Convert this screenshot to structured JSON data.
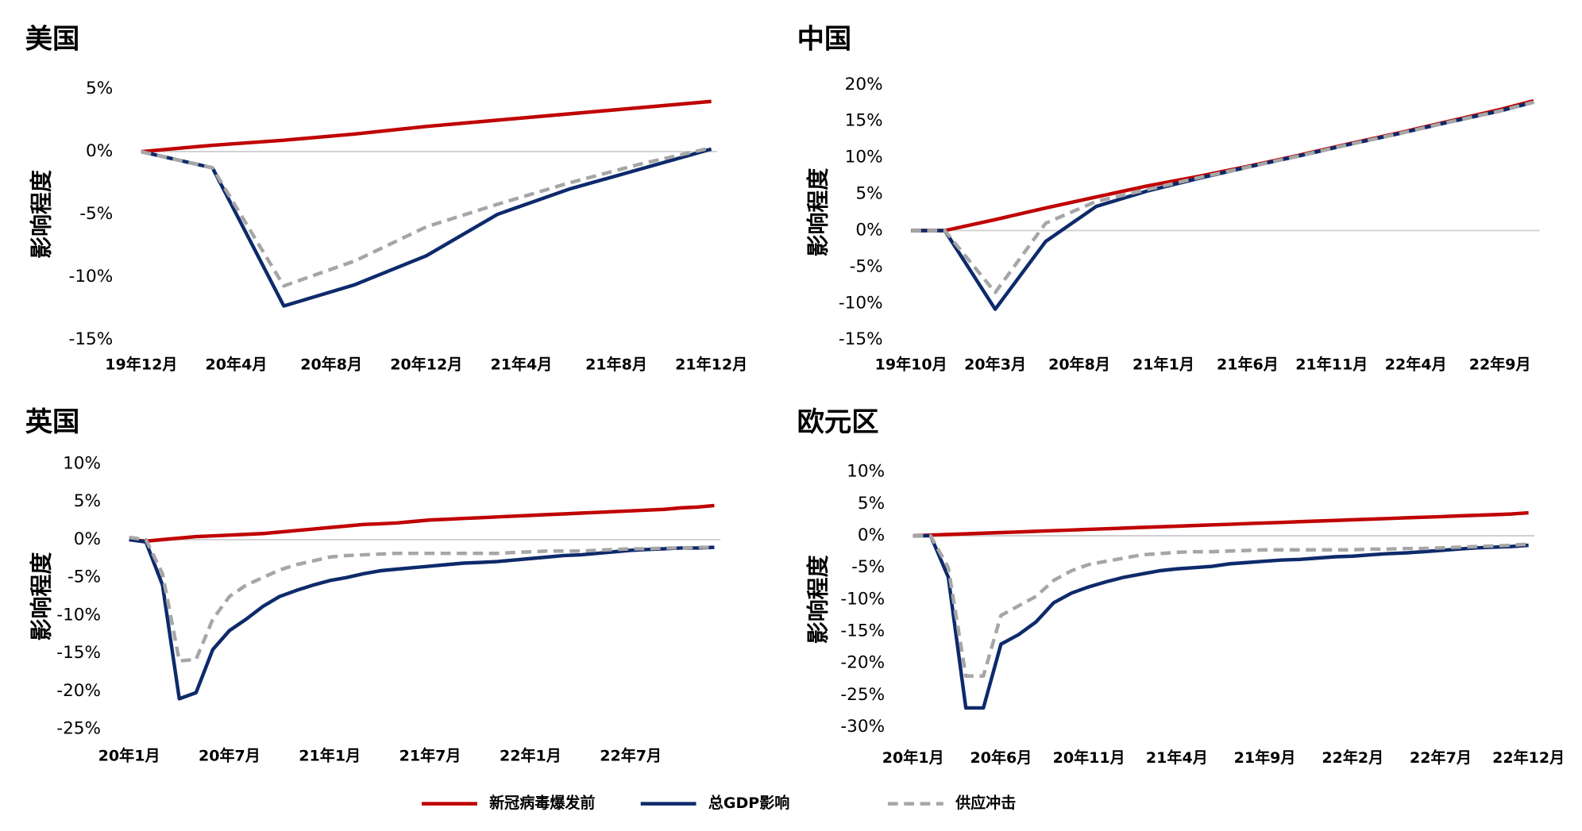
{
  "chart_data": [
    {
      "type": "line",
      "title": "美国",
      "y_label": "影响程度",
      "x": [
        "19年12月",
        "20年3月",
        "20年6月",
        "20年9月",
        "20年12月",
        "21年3月",
        "21年6月",
        "21年9月",
        "21年12月"
      ],
      "xticks": [
        "19年12月",
        "20年4月",
        "20年8月",
        "20年12月",
        "21年4月",
        "21年8月",
        "21年12月"
      ],
      "ylim": [
        -15,
        5
      ],
      "yticks": [
        {
          "value": -15,
          "label": "-15%"
        },
        {
          "value": -10,
          "label": "-10%"
        },
        {
          "value": -5,
          "label": "-5%"
        },
        {
          "value": 0,
          "label": "0%"
        },
        {
          "value": 5,
          "label": "5%"
        }
      ],
      "series": [
        {
          "name": "新冠病毒爆发前",
          "color": "#c00000",
          "values": [
            0,
            0.5,
            0.9,
            1.4,
            2.0,
            2.5,
            3.0,
            3.5,
            4.0
          ]
        },
        {
          "name": "总GDP影响",
          "color": "#0d2a6b",
          "values": [
            0,
            -1.3,
            -12.3,
            -10.6,
            -8.3,
            -5.0,
            -3.0,
            -1.4,
            0.2
          ]
        },
        {
          "name": "供应冲击",
          "color": "#a6a6a6",
          "dashed": true,
          "values": [
            0,
            -1.3,
            -10.7,
            -8.7,
            -6.0,
            -4.2,
            -2.5,
            -1.0,
            0.3
          ]
        }
      ]
    },
    {
      "type": "line",
      "title": "中国",
      "y_label": "影响程度",
      "x": [
        "19年10月",
        "19年12月",
        "20年3月",
        "20年6月",
        "20年9月",
        "20年12月",
        "21年3月",
        "21年6月",
        "21年9月",
        "21年12月",
        "22年3月",
        "22年6月",
        "22年9月",
        "22年11月"
      ],
      "xticks": [
        "19年10月",
        "20年3月",
        "20年8月",
        "21年1月",
        "21年6月",
        "21年11月",
        "22年4月",
        "22年9月"
      ],
      "ylim": [
        -15,
        20
      ],
      "yticks": [
        {
          "value": -15,
          "label": "-15%"
        },
        {
          "value": -10,
          "label": "-10%"
        },
        {
          "value": -5,
          "label": "-5%"
        },
        {
          "value": 0,
          "label": "0%"
        },
        {
          "value": 5,
          "label": "5%"
        },
        {
          "value": 10,
          "label": "10%"
        },
        {
          "value": 15,
          "label": "15%"
        },
        {
          "value": 20,
          "label": "20%"
        }
      ],
      "series": [
        {
          "name": "新冠病毒爆发前",
          "color": "#c00000",
          "values": [
            0,
            0,
            1.5,
            3.1,
            4.6,
            6.1,
            7.4,
            8.8,
            10.3,
            11.9,
            13.4,
            15.0,
            16.6,
            17.8
          ]
        },
        {
          "name": "总GDP影响",
          "color": "#0d2a6b",
          "values": [
            0,
            0,
            -10.8,
            -1.5,
            3.3,
            5.4,
            7.1,
            8.7,
            10.2,
            11.8,
            13.3,
            14.9,
            16.4,
            17.6
          ]
        },
        {
          "name": "供应冲击",
          "color": "#a6a6a6",
          "dashed": true,
          "values": [
            0,
            0,
            -8.5,
            1.0,
            4.0,
            5.6,
            7.2,
            8.7,
            10.2,
            11.8,
            13.3,
            14.9,
            16.4,
            17.6
          ]
        }
      ]
    },
    {
      "type": "line",
      "title": "英国",
      "y_label": "影响程度",
      "x": [
        "20年1月",
        "20年2月",
        "20年3月",
        "20年4月",
        "20年5月",
        "20年6月",
        "20年7月",
        "20年8月",
        "20年9月",
        "20年10月",
        "20年11月",
        "20年12月",
        "21年1月",
        "21年2月",
        "21年3月",
        "21年4月",
        "21年5月",
        "21年6月",
        "21年7月",
        "21年8月",
        "21年9月",
        "21年10月",
        "21年11月",
        "21年12月",
        "22年1月",
        "22年2月",
        "22年3月",
        "22年4月",
        "22年5月",
        "22年6月",
        "22年7月",
        "22年8月",
        "22年9月",
        "22年10月",
        "22年11月",
        "22年12月"
      ],
      "xticks": [
        "20年1月",
        "20年7月",
        "21年1月",
        "21年7月",
        "22年1月",
        "22年7月"
      ],
      "ylim": [
        -25,
        10
      ],
      "yticks": [
        {
          "value": -25,
          "label": "-25%"
        },
        {
          "value": -20,
          "label": "-20%"
        },
        {
          "value": -15,
          "label": "-15%"
        },
        {
          "value": -10,
          "label": "-10%"
        },
        {
          "value": -5,
          "label": "-5%"
        },
        {
          "value": 0,
          "label": "0%"
        },
        {
          "value": 5,
          "label": "5%"
        },
        {
          "value": 10,
          "label": "10%"
        }
      ],
      "series": [
        {
          "name": "新冠病毒爆发前",
          "color": "#c00000",
          "values": [
            0,
            -0.2,
            0,
            0.2,
            0.4,
            0.5,
            0.6,
            0.7,
            0.8,
            1.0,
            1.2,
            1.4,
            1.6,
            1.8,
            2.0,
            2.1,
            2.2,
            2.4,
            2.6,
            2.7,
            2.8,
            2.9,
            3.0,
            3.1,
            3.2,
            3.3,
            3.4,
            3.5,
            3.6,
            3.7,
            3.8,
            3.9,
            4.0,
            4.2,
            4.3,
            4.5
          ]
        },
        {
          "name": "总GDP影响",
          "color": "#0d2a6b",
          "values": [
            0,
            -0.3,
            -6,
            -21,
            -20.2,
            -14.5,
            -12,
            -10.5,
            -8.8,
            -7.5,
            -6.7,
            -6,
            -5.4,
            -5,
            -4.5,
            -4.1,
            -3.9,
            -3.7,
            -3.5,
            -3.3,
            -3.1,
            -3,
            -2.9,
            -2.7,
            -2.5,
            -2.3,
            -2.1,
            -2,
            -1.8,
            -1.6,
            -1.4,
            -1.3,
            -1.2,
            -1.1,
            -1.1,
            -1
          ]
        },
        {
          "name": "供应冲击",
          "color": "#a6a6a6",
          "dashed": true,
          "values": [
            0.3,
            0,
            -4.5,
            -16,
            -15.8,
            -10.5,
            -7.5,
            -6,
            -5,
            -4,
            -3.3,
            -2.8,
            -2.3,
            -2.1,
            -2,
            -1.9,
            -1.8,
            -1.8,
            -1.8,
            -1.8,
            -1.8,
            -1.8,
            -1.8,
            -1.7,
            -1.6,
            -1.5,
            -1.5,
            -1.5,
            -1.4,
            -1.3,
            -1.2,
            -1.2,
            -1.1,
            -1.1,
            -1,
            -1
          ]
        }
      ]
    },
    {
      "type": "line",
      "title": "欧元区",
      "y_label": "影响程度",
      "x": [
        "20年1月",
        "20年2月",
        "20年3月",
        "20年4月",
        "20年5月",
        "20年6月",
        "20年7月",
        "20年8月",
        "20年9月",
        "20年10月",
        "20年11月",
        "20年12月",
        "21年1月",
        "21年2月",
        "21年3月",
        "21年4月",
        "21年5月",
        "21年6月",
        "21年7月",
        "21年8月",
        "21年9月",
        "21年10月",
        "21年11月",
        "21年12月",
        "22年1月",
        "22年2月",
        "22年3月",
        "22年4月",
        "22年5月",
        "22年6月",
        "22年7月",
        "22年8月",
        "22年9月",
        "22年10月",
        "22年11月",
        "22年12月"
      ],
      "xticks": [
        "20年1月",
        "20年6月",
        "20年11月",
        "21年4月",
        "21年9月",
        "22年2月",
        "22年7月",
        "22年12月"
      ],
      "ylim": [
        -30,
        10
      ],
      "yticks": [
        {
          "value": -30,
          "label": "-30%"
        },
        {
          "value": -25,
          "label": "-25%"
        },
        {
          "value": -20,
          "label": "-20%"
        },
        {
          "value": -15,
          "label": "-15%"
        },
        {
          "value": -10,
          "label": "-10%"
        },
        {
          "value": -5,
          "label": "-5%"
        },
        {
          "value": 0,
          "label": "0%"
        },
        {
          "value": 5,
          "label": "5%"
        },
        {
          "value": 10,
          "label": "10%"
        }
      ],
      "series": [
        {
          "name": "新冠病毒爆发前",
          "color": "#c00000",
          "values": [
            0,
            0.1,
            0.2,
            0.3,
            0.4,
            0.5,
            0.6,
            0.7,
            0.8,
            0.9,
            1.0,
            1.1,
            1.2,
            1.3,
            1.4,
            1.5,
            1.6,
            1.7,
            1.8,
            1.9,
            2.0,
            2.1,
            2.2,
            2.3,
            2.4,
            2.5,
            2.6,
            2.7,
            2.8,
            2.9,
            3.0,
            3.1,
            3.2,
            3.3,
            3.4,
            3.6
          ]
        },
        {
          "name": "总GDP影响",
          "color": "#0d2a6b",
          "values": [
            0,
            0,
            -6.5,
            -27,
            -27,
            -17,
            -15.5,
            -13.5,
            -10.5,
            -9,
            -8,
            -7.2,
            -6.5,
            -6,
            -5.5,
            -5.2,
            -5,
            -4.8,
            -4.4,
            -4.2,
            -4,
            -3.8,
            -3.7,
            -3.5,
            -3.3,
            -3.2,
            -3,
            -2.8,
            -2.7,
            -2.5,
            -2.3,
            -2.1,
            -1.9,
            -1.8,
            -1.7,
            -1.5
          ]
        },
        {
          "name": "供应冲击",
          "color": "#a6a6a6",
          "dashed": true,
          "values": [
            0,
            0,
            -5,
            -22,
            -22,
            -12.5,
            -11,
            -9.5,
            -7,
            -5.5,
            -4.5,
            -4,
            -3.5,
            -3,
            -2.8,
            -2.6,
            -2.5,
            -2.5,
            -2.4,
            -2.3,
            -2.2,
            -2.2,
            -2.2,
            -2.2,
            -2.2,
            -2.2,
            -2.1,
            -2.1,
            -2,
            -2,
            -1.9,
            -1.8,
            -1.7,
            -1.6,
            -1.5,
            -1.3
          ]
        }
      ]
    }
  ]
}
